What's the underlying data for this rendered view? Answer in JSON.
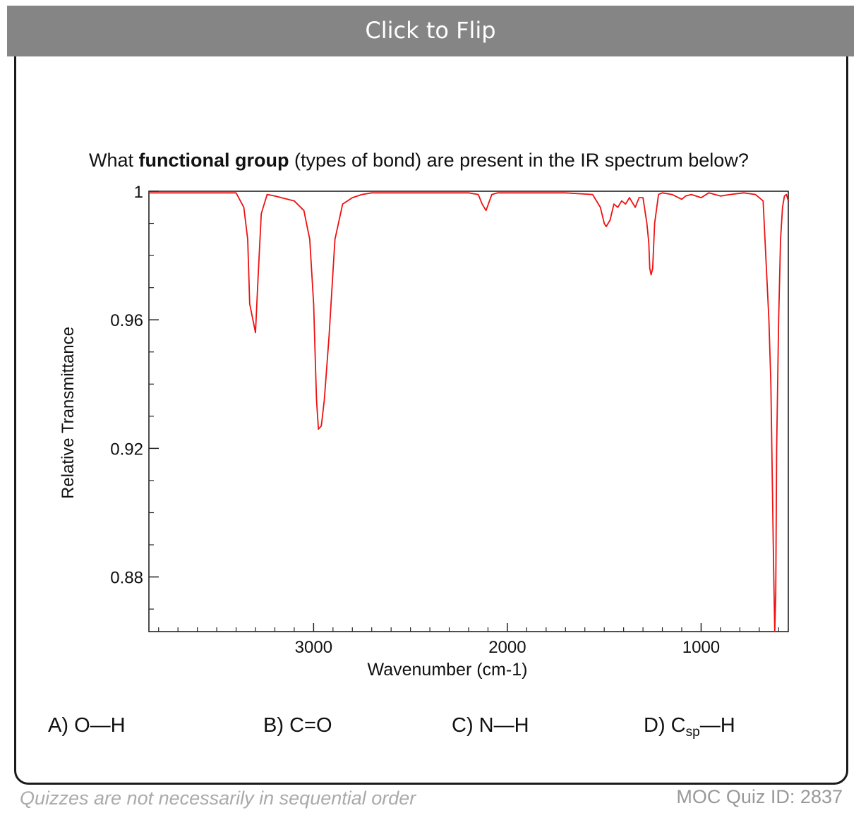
{
  "flip_label": "Click to Flip",
  "question": {
    "prefix": "What ",
    "bold": "functional group",
    "suffix": " (types of bond) are present in the IR spectrum below?"
  },
  "answers": [
    {
      "letter": "A)",
      "text": "O—H"
    },
    {
      "letter": "B)",
      "text": "C=O"
    },
    {
      "letter": "C)",
      "text": "N—H"
    },
    {
      "letter": "D)",
      "text_main": "C",
      "text_sub": "sp",
      "text_tail": "—H"
    }
  ],
  "footer": {
    "left": "Quizzes are not necessarily in sequential order",
    "right": "MOC Quiz ID: 2837"
  },
  "chart_data": {
    "type": "line",
    "xlabel": "Wavenumber (cm-1)",
    "ylabel": "Relative Transmittance",
    "xlim": [
      3850,
      550
    ],
    "ylim": [
      0.863,
      1.0
    ],
    "x_ticks": [
      3000,
      2000,
      1000
    ],
    "x_tick_labels": [
      "3000",
      "2000",
      "1000"
    ],
    "y_ticks": [
      1.0,
      0.96,
      0.92,
      0.88
    ],
    "y_tick_labels": [
      "1",
      "0.96",
      "0.92",
      "0.88"
    ],
    "grid": false,
    "line_color": "#ee1111",
    "series": [
      {
        "x": [
          3850,
          3400,
          3360,
          3340,
          3330,
          3320,
          3310,
          3300,
          3285,
          3270,
          3240,
          3200,
          3100,
          3050,
          3020,
          3000,
          2990,
          2985,
          2975,
          2960,
          2945,
          2920,
          2890,
          2850,
          2800,
          2750,
          2700,
          2500,
          2200,
          2150,
          2130,
          2110,
          2080,
          2050,
          1900,
          1700,
          1560,
          1520,
          1500,
          1490,
          1470,
          1450,
          1430,
          1410,
          1390,
          1370,
          1340,
          1320,
          1300,
          1280,
          1270,
          1265,
          1258,
          1250,
          1240,
          1220,
          1200,
          1150,
          1100,
          1080,
          1050,
          1000,
          960,
          900,
          850,
          780,
          720,
          680,
          650,
          640,
          630,
          625,
          620,
          615,
          610,
          600,
          590,
          580,
          570,
          560,
          550
        ],
        "y": [
          0.9995,
          0.9995,
          0.995,
          0.985,
          0.965,
          0.962,
          0.959,
          0.956,
          0.975,
          0.993,
          0.999,
          0.9985,
          0.997,
          0.994,
          0.985,
          0.965,
          0.945,
          0.935,
          0.926,
          0.927,
          0.935,
          0.955,
          0.985,
          0.996,
          0.998,
          0.999,
          0.9995,
          0.9995,
          0.9995,
          0.999,
          0.996,
          0.994,
          0.999,
          0.9995,
          0.9995,
          0.9995,
          0.999,
          0.995,
          0.99,
          0.989,
          0.991,
          0.996,
          0.995,
          0.997,
          0.996,
          0.998,
          0.995,
          0.998,
          0.998,
          0.99,
          0.984,
          0.976,
          0.974,
          0.976,
          0.99,
          0.999,
          0.9995,
          0.999,
          0.9975,
          0.9985,
          0.999,
          0.998,
          0.9995,
          0.9985,
          0.999,
          0.9995,
          0.999,
          0.997,
          0.96,
          0.94,
          0.9,
          0.88,
          0.863,
          0.875,
          0.92,
          0.96,
          0.985,
          0.995,
          0.9985,
          0.999,
          0.997
        ]
      }
    ]
  }
}
